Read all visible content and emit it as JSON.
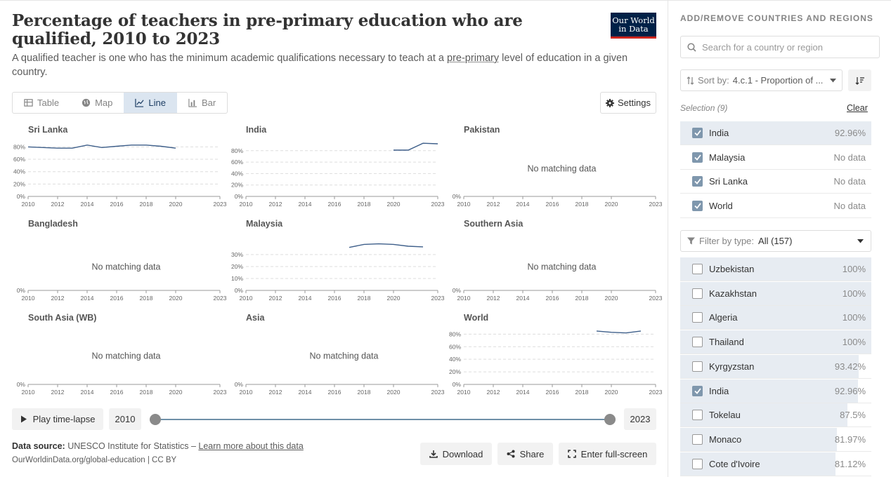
{
  "header": {
    "title": "Percentage of teachers in pre-primary education who are qualified, 2010 to 2023",
    "subtitle_before": "A qualified teacher is one who has the minimum academic qualifications necessary to teach at a ",
    "subtitle_link": "pre-primary",
    "subtitle_after": " level of education in a given country.",
    "logo_line1": "Our World",
    "logo_line2": "in Data"
  },
  "tabs": [
    {
      "label": "Table",
      "icon": "table-icon",
      "active": false
    },
    {
      "label": "Map",
      "icon": "globe-icon",
      "active": false
    },
    {
      "label": "Line",
      "icon": "line-chart-icon",
      "active": true
    },
    {
      "label": "Bar",
      "icon": "bar-chart-icon",
      "active": false
    }
  ],
  "settings_label": "Settings",
  "no_data_text": "No matching data",
  "timeline": {
    "play_label": "Play time-lapse",
    "start_year": "2010",
    "end_year": "2023"
  },
  "footer": {
    "source_label": "Data source:",
    "source_value": "UNESCO Institute for Statistics –",
    "learn_more": "Learn more about this data",
    "url": "OurWorldinData.org/global-education | CC BY"
  },
  "actions": {
    "download": "Download",
    "share": "Share",
    "fullscreen": "Enter full-screen"
  },
  "sidebar": {
    "heading": "ADD/REMOVE COUNTRIES AND REGIONS",
    "search_placeholder": "Search for a country or region",
    "sort_label": "Sort by:",
    "sort_value": "4.c.1 - Proportion of ...",
    "selection_label": "Selection (9)",
    "clear_label": "Clear",
    "selected": [
      {
        "name": "India",
        "value": "92.96%",
        "fill": 1.0
      },
      {
        "name": "Malaysia",
        "value": "No data",
        "fill": 0
      },
      {
        "name": "Sri Lanka",
        "value": "No data",
        "fill": 0
      },
      {
        "name": "World",
        "value": "No data",
        "fill": 0
      }
    ],
    "filter_label": "Filter by type:",
    "filter_value": "All (157)",
    "list": [
      {
        "name": "Uzbekistan",
        "value": "100%",
        "checked": false,
        "fill": 1.0
      },
      {
        "name": "Kazakhstan",
        "value": "100%",
        "checked": false,
        "fill": 1.0
      },
      {
        "name": "Algeria",
        "value": "100%",
        "checked": false,
        "fill": 1.0
      },
      {
        "name": "Thailand",
        "value": "100%",
        "checked": false,
        "fill": 1.0
      },
      {
        "name": "Kyrgyzstan",
        "value": "93.42%",
        "checked": false,
        "fill": 0.9342
      },
      {
        "name": "India",
        "value": "92.96%",
        "checked": true,
        "fill": 0.9296
      },
      {
        "name": "Tokelau",
        "value": "87.5%",
        "checked": false,
        "fill": 0.875
      },
      {
        "name": "Monaco",
        "value": "81.97%",
        "checked": false,
        "fill": 0.8197
      },
      {
        "name": "Cote d'Ivoire",
        "value": "81.12%",
        "checked": false,
        "fill": 0.8112
      }
    ]
  },
  "chart_data": {
    "type": "line",
    "x_ticks": [
      "2010",
      "2012",
      "2014",
      "2016",
      "2018",
      "2020",
      "2023"
    ],
    "xlim": [
      2010,
      2023
    ],
    "grid": true,
    "panels": [
      {
        "name": "Sri Lanka",
        "y_ticks": [
          "0%",
          "20%",
          "40%",
          "60%",
          "80%"
        ],
        "ylim": [
          0,
          85
        ],
        "points": [
          [
            2010,
            80
          ],
          [
            2011,
            79
          ],
          [
            2012,
            78
          ],
          [
            2013,
            78
          ],
          [
            2014,
            83
          ],
          [
            2015,
            79
          ],
          [
            2016,
            81
          ],
          [
            2017,
            83
          ],
          [
            2018,
            83
          ],
          [
            2019,
            81
          ],
          [
            2020,
            78
          ]
        ]
      },
      {
        "name": "India",
        "y_ticks": [
          "0%",
          "20%",
          "40%",
          "60%",
          "80%"
        ],
        "ylim": [
          0,
          92
        ],
        "points": [
          [
            2020,
            81
          ],
          [
            2021,
            81
          ],
          [
            2022,
            93
          ],
          [
            2023,
            92
          ]
        ]
      },
      {
        "name": "Pakistan",
        "y_ticks": [
          "0%"
        ],
        "ylim": [
          0,
          100
        ],
        "points": []
      },
      {
        "name": "Bangladesh",
        "y_ticks": [
          "0%"
        ],
        "ylim": [
          0,
          100
        ],
        "points": []
      },
      {
        "name": "Malaysia",
        "y_ticks": [
          "0%",
          "10%",
          "20%",
          "30%"
        ],
        "ylim": [
          0,
          37
        ],
        "points": [
          [
            2017,
            36
          ],
          [
            2018,
            38.5
          ],
          [
            2019,
            39
          ],
          [
            2020,
            38.5
          ],
          [
            2021,
            37
          ],
          [
            2022,
            36.5
          ]
        ]
      },
      {
        "name": "Southern Asia",
        "y_ticks": [
          "0%"
        ],
        "ylim": [
          0,
          100
        ],
        "points": []
      },
      {
        "name": "South Asia (WB)",
        "y_ticks": [
          "0%"
        ],
        "ylim": [
          0,
          100
        ],
        "points": []
      },
      {
        "name": "Asia",
        "y_ticks": [
          "0%"
        ],
        "ylim": [
          0,
          100
        ],
        "points": []
      },
      {
        "name": "World",
        "y_ticks": [
          "0%",
          "20%",
          "40%",
          "60%",
          "80%"
        ],
        "ylim": [
          0,
          86
        ],
        "points": [
          [
            2019,
            85
          ],
          [
            2020,
            83
          ],
          [
            2021,
            82
          ],
          [
            2022,
            85
          ]
        ]
      }
    ]
  }
}
